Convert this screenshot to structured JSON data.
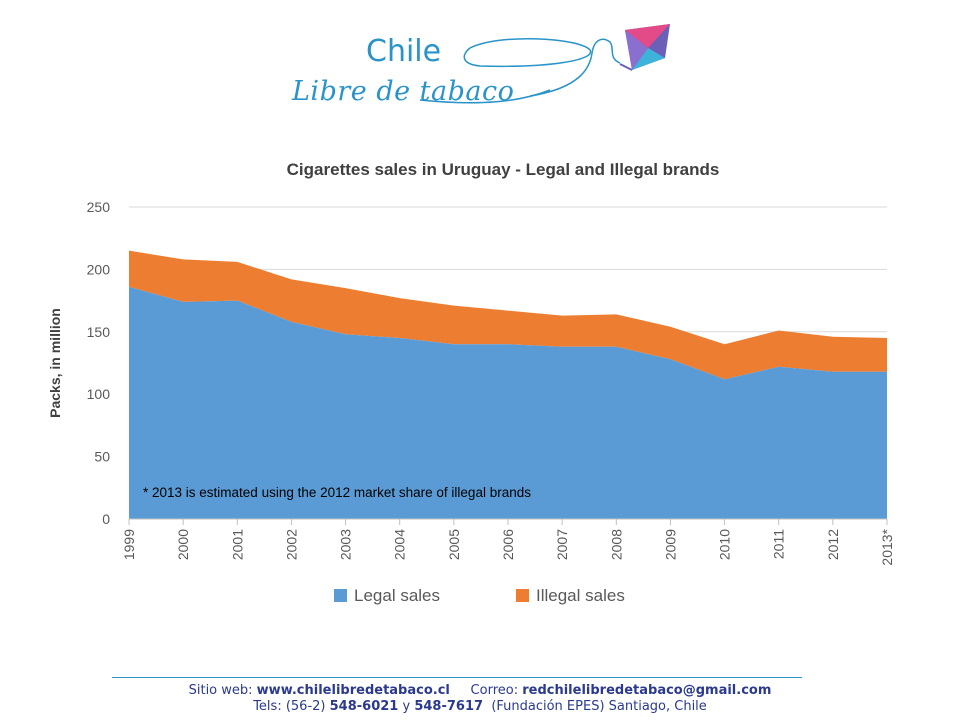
{
  "logo": {
    "name": "Chile",
    "tagline": "Libre de tabaco"
  },
  "colors": {
    "brand": "#2a93c9",
    "legal": "#5b9bd5",
    "illegal": "#ed7d31",
    "footer_text": "#2b3a8f"
  },
  "chart_data": {
    "type": "area",
    "stacked": true,
    "title": "Cigarettes  sales in Uruguay - Legal and Illegal brands",
    "xlabel": "",
    "ylabel": "Packs, in million",
    "ylim": [
      0,
      250
    ],
    "yticks": [
      0,
      50,
      100,
      150,
      200,
      250
    ],
    "grid": true,
    "legend_position": "bottom",
    "x": [
      "1999",
      "2000",
      "2001",
      "2002",
      "2003",
      "2004",
      "2005",
      "2006",
      "2007",
      "2008",
      "2009",
      "2010",
      "2011",
      "2012",
      "2013*"
    ],
    "series": [
      {
        "name": "Legal sales",
        "color": "#5b9bd5",
        "values": [
          186,
          174,
          175,
          158,
          148,
          145,
          140,
          140,
          138,
          138,
          128,
          112,
          122,
          118,
          118
        ]
      },
      {
        "name": "Illegal sales",
        "color": "#ed7d31",
        "values": [
          29,
          34,
          31,
          34,
          37,
          32,
          31,
          27,
          25,
          26,
          26,
          28,
          29,
          28,
          27
        ]
      }
    ],
    "annotation": "* 2013 is estimated using the 2012 market share of illegal brands"
  },
  "footer": {
    "web_label": "Sitio web:",
    "web_value": "www.chilelibredetabaco.cl",
    "mail_label": "Correo:",
    "mail_value": "redchilelibredetabaco@gmail.com",
    "tel_label": "Tels: (56-2)",
    "tel_1": "548-6021",
    "tel_sep": "y",
    "tel_2": "548-7617",
    "tel_rest": "(Fundación EPES)  Santiago, Chile"
  }
}
